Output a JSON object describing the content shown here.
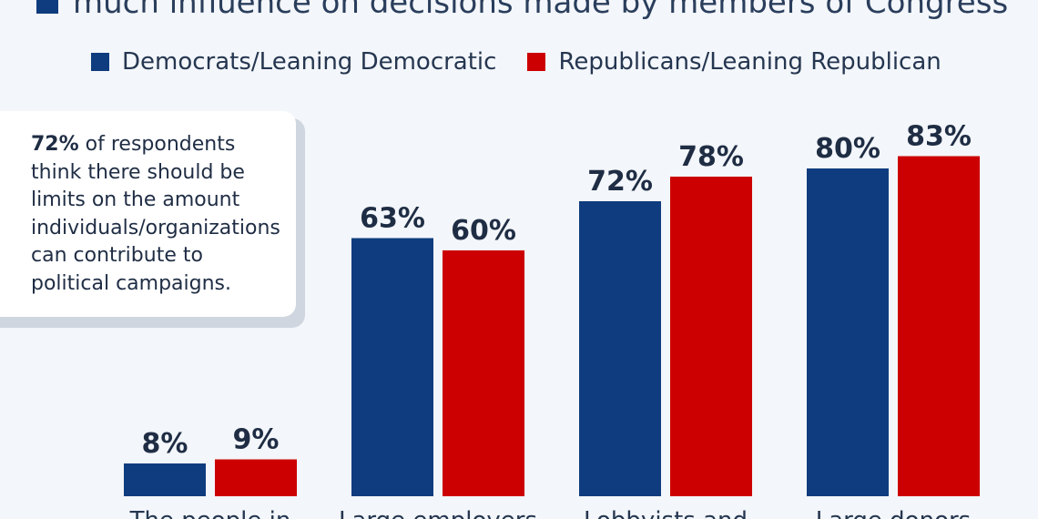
{
  "colors": {
    "democrat": "#0f3c7e",
    "republican": "#cc0000",
    "title_square": "#0f3c7e"
  },
  "chart_data": {
    "type": "bar",
    "title": "much influence on decisions made by members of Congress",
    "categories": [
      "The people in",
      "Large employers",
      "Lobbyists and",
      "Large donors"
    ],
    "series": [
      {
        "name": "Democrats/Leaning Democratic",
        "values": [
          8,
          63,
          72,
          80
        ],
        "labels": [
          "8%",
          "63%",
          "72%",
          "80%"
        ]
      },
      {
        "name": "Republicans/Leaning Republican",
        "values": [
          9,
          60,
          78,
          83
        ],
        "labels": [
          "9%",
          "60%",
          "78%",
          "83%"
        ]
      }
    ],
    "ylim": [
      0,
      100
    ],
    "grid": false,
    "legend": "top"
  },
  "note": {
    "highlight": "72%",
    "text": " of respondents think there should be limits on the amount individuals/organizations can contribute to political campaigns."
  }
}
